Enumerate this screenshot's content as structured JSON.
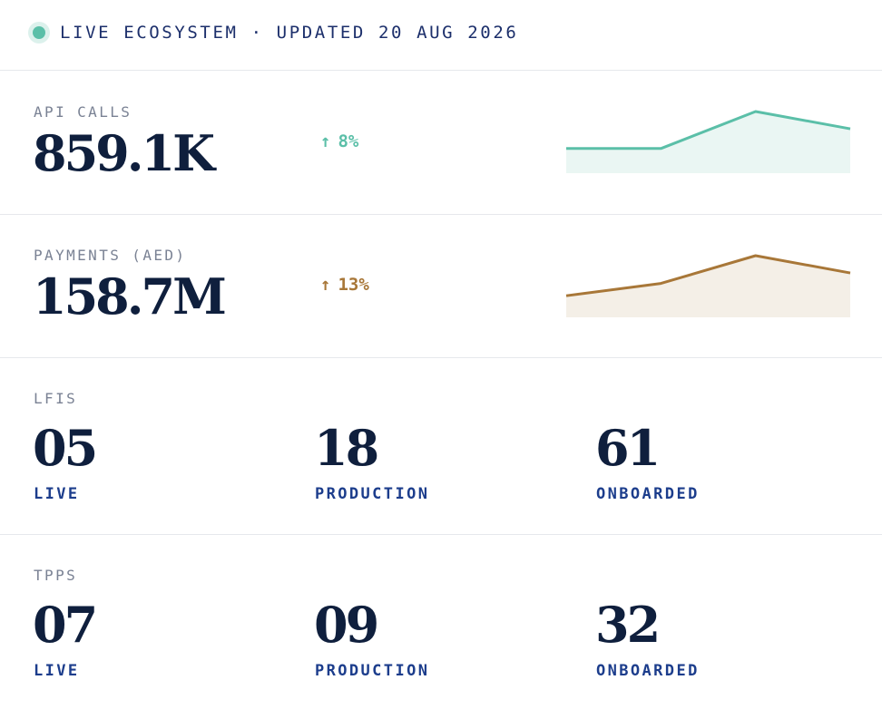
{
  "header": {
    "text": "LIVE ECOSYSTEM · UPDATED 20 AUG 2026",
    "dot_color": "#5bbfa8"
  },
  "metrics": [
    {
      "label": "API CALLS",
      "value": "859.1K",
      "delta": "8%",
      "delta_arrow": "↑",
      "color": "#5bbfa8",
      "fill": "#eaf6f3",
      "sparkline": [
        0.4,
        0.4,
        1.0,
        0.72
      ]
    },
    {
      "label": "PAYMENTS (AED)",
      "value": "158.7M",
      "delta": "13%",
      "delta_arrow": "↑",
      "color": "#a87738",
      "fill": "#f4efe7",
      "sparkline": [
        0.35,
        0.55,
        1.0,
        0.72
      ]
    }
  ],
  "lfis": {
    "label": "LFIS",
    "stats": [
      {
        "value": "05",
        "status": "LIVE"
      },
      {
        "value": "18",
        "status": "PRODUCTION"
      },
      {
        "value": "61",
        "status": "ONBOARDED"
      }
    ]
  },
  "tpps": {
    "label": "TPPS",
    "stats": [
      {
        "value": "07",
        "status": "LIVE"
      },
      {
        "value": "09",
        "status": "PRODUCTION"
      },
      {
        "value": "32",
        "status": "ONBOARDED"
      }
    ]
  }
}
